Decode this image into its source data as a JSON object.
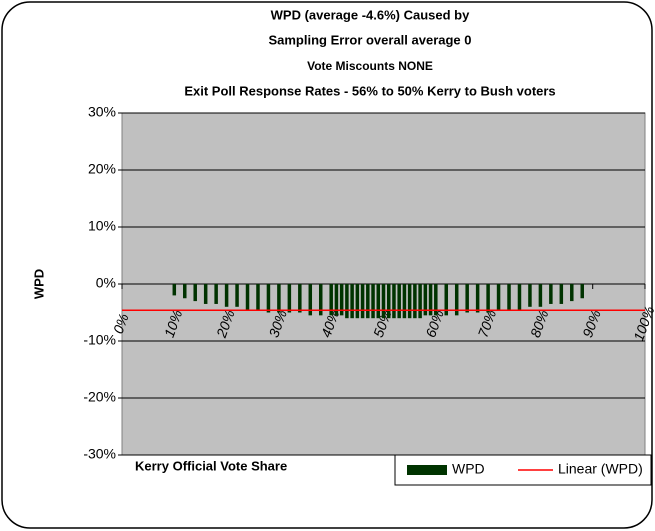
{
  "chart_data": {
    "type": "bar",
    "title": [
      "WPD (average -4.6%) Caused by",
      "Sampling Error overall average 0",
      "Vote Miscounts NONE",
      "Exit Poll Response Rates - 56% to 50% Kerry to Bush voters"
    ],
    "x_label": "Kerry Official Vote Share",
    "y_label": "WPD",
    "x": [
      10,
      12,
      14,
      16,
      18,
      20,
      22,
      24,
      26,
      28,
      30,
      32,
      34,
      36,
      38,
      40,
      41,
      42,
      43,
      44,
      45,
      46,
      47,
      48,
      49,
      50,
      51,
      52,
      53,
      54,
      55,
      56,
      57,
      58,
      59,
      60,
      62,
      64,
      66,
      68,
      70,
      72,
      74,
      76,
      78,
      80,
      82,
      84,
      86,
      88
    ],
    "series": [
      {
        "name": "WPD",
        "color": "#003300",
        "values": [
          -2,
          -2.5,
          -3,
          -3.5,
          -3.5,
          -4,
          -4,
          -4.5,
          -4.5,
          -5,
          -5,
          -5,
          -5,
          -5.5,
          -5.5,
          -5.5,
          -5.5,
          -5.5,
          -6,
          -6,
          -6,
          -6,
          -6,
          -6,
          -6,
          -6,
          -6,
          -6,
          -6,
          -6,
          -6,
          -6,
          -6,
          -5.5,
          -5.5,
          -5.5,
          -5.5,
          -5.5,
          -5,
          -5,
          -5,
          -4.5,
          -4.5,
          -4.5,
          -4,
          -4,
          -3.5,
          -3.5,
          -3,
          -2.5
        ]
      }
    ],
    "trendline": {
      "name": "Linear (WPD)",
      "value": -4.6,
      "color": "#ff0000"
    },
    "xlim": [
      0,
      100
    ],
    "xticks": [
      {
        "value": 0,
        "label": "0%"
      },
      {
        "value": 10,
        "label": "10%"
      },
      {
        "value": 20,
        "label": "20%"
      },
      {
        "value": 30,
        "label": "30%"
      },
      {
        "value": 40,
        "label": "40%"
      },
      {
        "value": 50,
        "label": "50%"
      },
      {
        "value": 60,
        "label": "60%"
      },
      {
        "value": 70,
        "label": "70%"
      },
      {
        "value": 80,
        "label": "80%"
      },
      {
        "value": 90,
        "label": "90%"
      },
      {
        "value": 100,
        "label": "100%"
      }
    ],
    "ylim": [
      -30,
      30
    ],
    "yticks": [
      {
        "value": 30,
        "label": "30%"
      },
      {
        "value": 20,
        "label": "20%"
      },
      {
        "value": 10,
        "label": "10%"
      },
      {
        "value": 0,
        "label": "0%"
      },
      {
        "value": -10,
        "label": "-10%"
      },
      {
        "value": -20,
        "label": "-20%"
      },
      {
        "value": -30,
        "label": "-30%"
      }
    ],
    "grid": true
  }
}
